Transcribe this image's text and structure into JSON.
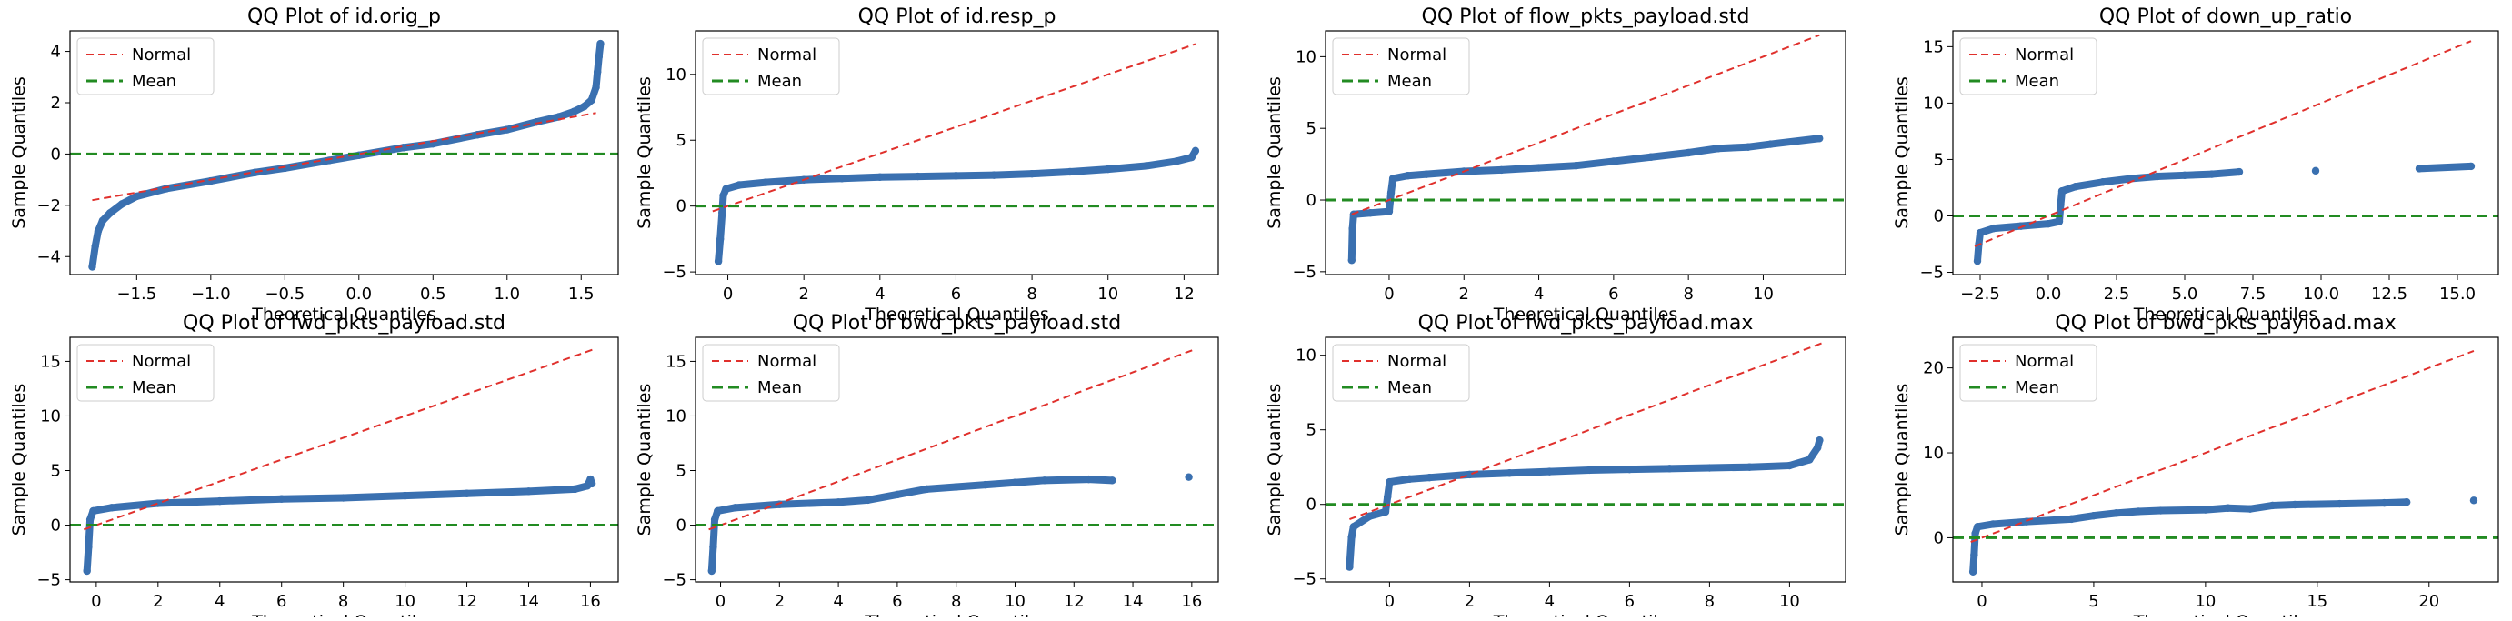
{
  "figure": {
    "colors": {
      "points": "#3a70b0",
      "normal_line": "#e0302c",
      "mean_line": "#228b22",
      "axes": "#000000"
    },
    "legend_position": "upper-left"
  },
  "chart_data": [
    {
      "type": "scatter",
      "title": "QQ Plot of id.orig_p",
      "xlabel": "Theoretical Quantiles",
      "ylabel": "Sample Quantiles",
      "xlim": [
        -1.95,
        1.75
      ],
      "ylim": [
        -4.7,
        4.8
      ],
      "xticks": [
        -1.5,
        -1.0,
        -0.5,
        0.0,
        0.5,
        1.0,
        1.5
      ],
      "xtick_labels": [
        "−1.5",
        "−1.0",
        "−0.5",
        "0.0",
        "0.5",
        "1.0",
        "1.5"
      ],
      "yticks": [
        -4,
        -2,
        0,
        2,
        4
      ],
      "ytick_labels": [
        "−4",
        "−2",
        "0",
        "2",
        "4"
      ],
      "legend": [
        "Normal",
        "Mean"
      ],
      "normal_line": {
        "x": [
          -1.8,
          1.6
        ],
        "y": [
          -1.8,
          1.6
        ]
      },
      "mean_line": 0,
      "points": [
        [
          -1.8,
          -4.4
        ],
        [
          -1.78,
          -3.6
        ],
        [
          -1.76,
          -3.0
        ],
        [
          -1.73,
          -2.6
        ],
        [
          -1.68,
          -2.3
        ],
        [
          -1.6,
          -1.95
        ],
        [
          -1.5,
          -1.65
        ],
        [
          -1.3,
          -1.35
        ],
        [
          -1.0,
          -1.05
        ],
        [
          -0.7,
          -0.72
        ],
        [
          -0.5,
          -0.55
        ],
        [
          -0.2,
          -0.25
        ],
        [
          0.0,
          -0.05
        ],
        [
          0.3,
          0.25
        ],
        [
          0.5,
          0.4
        ],
        [
          0.8,
          0.75
        ],
        [
          1.0,
          0.95
        ],
        [
          1.2,
          1.25
        ],
        [
          1.35,
          1.45
        ],
        [
          1.45,
          1.65
        ],
        [
          1.52,
          1.85
        ],
        [
          1.57,
          2.1
        ],
        [
          1.6,
          2.6
        ],
        [
          1.61,
          3.2
        ],
        [
          1.62,
          3.8
        ],
        [
          1.63,
          4.3
        ]
      ]
    },
    {
      "type": "scatter",
      "title": "QQ Plot of id.resp_p",
      "xlabel": "Theoretical Quantiles",
      "ylabel": "Sample Quantiles",
      "xlim": [
        -0.85,
        12.9
      ],
      "ylim": [
        -5.2,
        13.3
      ],
      "xticks": [
        0,
        2,
        4,
        6,
        8,
        10,
        12
      ],
      "xtick_labels": [
        "0",
        "2",
        "4",
        "6",
        "8",
        "10",
        "12"
      ],
      "yticks": [
        -5,
        0,
        5,
        10
      ],
      "ytick_labels": [
        "−5",
        "0",
        "5",
        "10"
      ],
      "legend": [
        "Normal",
        "Mean"
      ],
      "normal_line": {
        "x": [
          -0.4,
          12.3
        ],
        "y": [
          -0.4,
          12.3
        ]
      },
      "mean_line": 0,
      "points": [
        [
          -0.25,
          -4.2
        ],
        [
          -0.2,
          -2.5
        ],
        [
          -0.15,
          -0.5
        ],
        [
          -0.12,
          0.8
        ],
        [
          -0.05,
          1.3
        ],
        [
          0.3,
          1.6
        ],
        [
          1.0,
          1.8
        ],
        [
          2.0,
          2.0
        ],
        [
          3.0,
          2.1
        ],
        [
          4.0,
          2.2
        ],
        [
          5.0,
          2.25
        ],
        [
          6.0,
          2.3
        ],
        [
          7.0,
          2.35
        ],
        [
          8.0,
          2.45
        ],
        [
          9.0,
          2.6
        ],
        [
          10.0,
          2.8
        ],
        [
          11.0,
          3.05
        ],
        [
          11.8,
          3.4
        ],
        [
          12.2,
          3.7
        ],
        [
          12.3,
          4.2
        ]
      ]
    },
    {
      "type": "scatter",
      "title": "QQ Plot of flow_pkts_payload.std",
      "xlabel": "Theoretical Quantiles",
      "ylabel": "Sample Quantiles",
      "xlim": [
        -1.7,
        12.2
      ],
      "ylim": [
        -5.2,
        11.8
      ],
      "xticks": [
        0,
        2,
        4,
        6,
        8,
        10
      ],
      "xtick_labels": [
        "0",
        "2",
        "4",
        "6",
        "8",
        "10"
      ],
      "yticks": [
        -5,
        0,
        5,
        10
      ],
      "ytick_labels": [
        "−5",
        "0",
        "5",
        "10"
      ],
      "legend": [
        "Normal",
        "Mean"
      ],
      "normal_line": {
        "x": [
          -1.0,
          11.5
        ],
        "y": [
          -1.0,
          11.5
        ]
      },
      "mean_line": 0,
      "points": [
        [
          -1.0,
          -4.2
        ],
        [
          -0.98,
          -2.0
        ],
        [
          -0.95,
          -1.0
        ],
        [
          -0.5,
          -0.9
        ],
        [
          0.0,
          -0.8
        ],
        [
          0.05,
          0.5
        ],
        [
          0.1,
          1.5
        ],
        [
          0.5,
          1.7
        ],
        [
          1.0,
          1.8
        ],
        [
          2.0,
          2.0
        ],
        [
          3.0,
          2.1
        ],
        [
          4.0,
          2.25
        ],
        [
          5.0,
          2.4
        ],
        [
          6.0,
          2.7
        ],
        [
          7.0,
          3.0
        ],
        [
          8.0,
          3.3
        ],
        [
          8.8,
          3.6
        ],
        [
          9.6,
          3.7
        ],
        [
          10.2,
          3.9
        ],
        [
          11.5,
          4.3
        ]
      ]
    },
    {
      "type": "scatter",
      "title": "QQ Plot of down_up_ratio",
      "xlabel": "Theoretical Quantiles",
      "ylabel": "Sample Quantiles",
      "xlim": [
        -3.5,
        16.5
      ],
      "ylim": [
        -5.2,
        16.4
      ],
      "xticks": [
        -2.5,
        0.0,
        2.5,
        5.0,
        7.5,
        10.0,
        12.5,
        15.0
      ],
      "xtick_labels": [
        "−2.5",
        "0.0",
        "2.5",
        "5.0",
        "7.5",
        "10.0",
        "12.5",
        "15.0"
      ],
      "yticks": [
        -5,
        0,
        5,
        10,
        15
      ],
      "ytick_labels": [
        "−5",
        "0",
        "5",
        "10",
        "15"
      ],
      "legend": [
        "Normal",
        "Mean"
      ],
      "normal_line": {
        "x": [
          -2.7,
          15.5
        ],
        "y": [
          -2.7,
          15.5
        ]
      },
      "mean_line": 0,
      "points": [
        [
          -2.6,
          -4.0
        ],
        [
          -2.55,
          -2.5
        ],
        [
          -2.5,
          -1.5
        ],
        [
          -2.0,
          -1.1
        ],
        [
          -1.0,
          -0.9
        ],
        [
          0.0,
          -0.7
        ],
        [
          0.4,
          -0.5
        ],
        [
          0.45,
          1.0
        ],
        [
          0.5,
          2.2
        ],
        [
          1.0,
          2.6
        ],
        [
          2.0,
          3.0
        ],
        [
          3.0,
          3.3
        ],
        [
          4.0,
          3.5
        ],
        [
          5.0,
          3.6
        ],
        [
          6.0,
          3.7
        ],
        [
          7.0,
          3.9
        ],
        [
          9.8,
          4.0
        ],
        [
          13.6,
          4.2
        ],
        [
          15.5,
          4.4
        ]
      ]
    },
    {
      "type": "scatter",
      "title": "QQ Plot of fwd_pkts_payload.std",
      "xlabel": "Theoretical Quantiles",
      "ylabel": "Sample Quantiles",
      "xlim": [
        -0.85,
        16.9
      ],
      "ylim": [
        -5.2,
        17.2
      ],
      "xticks": [
        0,
        2,
        4,
        6,
        8,
        10,
        12,
        14,
        16
      ],
      "xtick_labels": [
        "0",
        "2",
        "4",
        "6",
        "8",
        "10",
        "12",
        "14",
        "16"
      ],
      "yticks": [
        -5,
        0,
        5,
        10,
        15
      ],
      "ytick_labels": [
        "−5",
        "0",
        "5",
        "10",
        "15"
      ],
      "legend": [
        "Normal",
        "Mean"
      ],
      "normal_line": {
        "x": [
          -0.4,
          16.1
        ],
        "y": [
          -0.4,
          16.1
        ]
      },
      "mean_line": 0,
      "points": [
        [
          -0.3,
          -4.2
        ],
        [
          -0.25,
          -2.0
        ],
        [
          -0.2,
          0.5
        ],
        [
          -0.1,
          1.3
        ],
        [
          0.5,
          1.6
        ],
        [
          2.0,
          2.0
        ],
        [
          4.0,
          2.2
        ],
        [
          6.0,
          2.4
        ],
        [
          8.0,
          2.5
        ],
        [
          10.0,
          2.7
        ],
        [
          12.0,
          2.9
        ],
        [
          14.0,
          3.1
        ],
        [
          15.5,
          3.3
        ],
        [
          15.9,
          3.6
        ],
        [
          16.0,
          4.2
        ],
        [
          16.05,
          3.8
        ]
      ]
    },
    {
      "type": "scatter",
      "title": "QQ Plot of bwd_pkts_payload.std",
      "xlabel": "Theoretical Quantiles",
      "ylabel": "Sample Quantiles",
      "xlim": [
        -0.85,
        16.9
      ],
      "ylim": [
        -5.2,
        17.2
      ],
      "xticks": [
        0,
        2,
        4,
        6,
        8,
        10,
        12,
        14,
        16
      ],
      "xtick_labels": [
        "0",
        "2",
        "4",
        "6",
        "8",
        "10",
        "12",
        "14",
        "16"
      ],
      "yticks": [
        -5,
        0,
        5,
        10,
        15
      ],
      "ytick_labels": [
        "−5",
        "0",
        "5",
        "10",
        "15"
      ],
      "legend": [
        "Normal",
        "Mean"
      ],
      "normal_line": {
        "x": [
          -0.4,
          16.1
        ],
        "y": [
          -0.4,
          16.1
        ]
      },
      "mean_line": 0,
      "points": [
        [
          -0.3,
          -4.2
        ],
        [
          -0.25,
          -2.0
        ],
        [
          -0.2,
          0.5
        ],
        [
          -0.1,
          1.3
        ],
        [
          0.5,
          1.6
        ],
        [
          2.0,
          1.9
        ],
        [
          4.0,
          2.1
        ],
        [
          5.0,
          2.3
        ],
        [
          6.0,
          2.8
        ],
        [
          7.0,
          3.3
        ],
        [
          8.0,
          3.5
        ],
        [
          9.0,
          3.7
        ],
        [
          10.0,
          3.9
        ],
        [
          11.0,
          4.1
        ],
        [
          12.5,
          4.2
        ],
        [
          13.3,
          4.1
        ],
        [
          15.9,
          4.4
        ]
      ]
    },
    {
      "type": "scatter",
      "title": "QQ Plot of fwd_pkts_payload.max",
      "xlabel": "Theoretical Quantiles",
      "ylabel": "Sample Quantiles",
      "xlim": [
        -1.6,
        11.4
      ],
      "ylim": [
        -5.2,
        11.2
      ],
      "xticks": [
        0,
        2,
        4,
        6,
        8,
        10
      ],
      "xtick_labels": [
        "0",
        "2",
        "4",
        "6",
        "8",
        "10"
      ],
      "yticks": [
        -5,
        0,
        5,
        10
      ],
      "ytick_labels": [
        "−5",
        "0",
        "5",
        "10"
      ],
      "legend": [
        "Normal",
        "Mean"
      ],
      "normal_line": {
        "x": [
          -1.0,
          10.8
        ],
        "y": [
          -1.0,
          10.8
        ]
      },
      "mean_line": 0,
      "points": [
        [
          -1.0,
          -4.2
        ],
        [
          -0.95,
          -2.2
        ],
        [
          -0.9,
          -1.5
        ],
        [
          -0.5,
          -0.8
        ],
        [
          -0.1,
          -0.5
        ],
        [
          -0.05,
          0.5
        ],
        [
          0.0,
          1.5
        ],
        [
          0.5,
          1.7
        ],
        [
          1.0,
          1.8
        ],
        [
          2.0,
          2.0
        ],
        [
          3.0,
          2.1
        ],
        [
          4.0,
          2.2
        ],
        [
          5.0,
          2.3
        ],
        [
          6.0,
          2.35
        ],
        [
          7.0,
          2.4
        ],
        [
          8.0,
          2.45
        ],
        [
          9.0,
          2.5
        ],
        [
          10.0,
          2.6
        ],
        [
          10.5,
          3.0
        ],
        [
          10.7,
          3.8
        ],
        [
          10.75,
          4.3
        ]
      ]
    },
    {
      "type": "scatter",
      "title": "QQ Plot of bwd_pkts_payload.max",
      "xlabel": "Theoretical Quantiles",
      "ylabel": "Sample Quantiles",
      "xlim": [
        -1.3,
        23.1
      ],
      "ylim": [
        -5.2,
        23.6
      ],
      "xticks": [
        0,
        5,
        10,
        15,
        20
      ],
      "xtick_labels": [
        "0",
        "5",
        "10",
        "15",
        "20"
      ],
      "yticks": [
        0,
        10,
        20
      ],
      "ytick_labels": [
        "0",
        "10",
        "20"
      ],
      "legend": [
        "Normal",
        "Mean"
      ],
      "normal_line": {
        "x": [
          -0.5,
          22.0
        ],
        "y": [
          -0.5,
          22.0
        ]
      },
      "mean_line": 0,
      "points": [
        [
          -0.4,
          -4.0
        ],
        [
          -0.35,
          -2.0
        ],
        [
          -0.3,
          0.5
        ],
        [
          -0.2,
          1.3
        ],
        [
          0.5,
          1.6
        ],
        [
          2.0,
          1.9
        ],
        [
          4.0,
          2.2
        ],
        [
          5.0,
          2.6
        ],
        [
          6.0,
          2.9
        ],
        [
          7.0,
          3.1
        ],
        [
          8.0,
          3.2
        ],
        [
          10.0,
          3.3
        ],
        [
          11.0,
          3.5
        ],
        [
          12.0,
          3.4
        ],
        [
          13.0,
          3.8
        ],
        [
          14.0,
          3.9
        ],
        [
          16.0,
          4.0
        ],
        [
          18.0,
          4.1
        ],
        [
          19.0,
          4.2
        ],
        [
          22.0,
          4.4
        ]
      ]
    }
  ]
}
